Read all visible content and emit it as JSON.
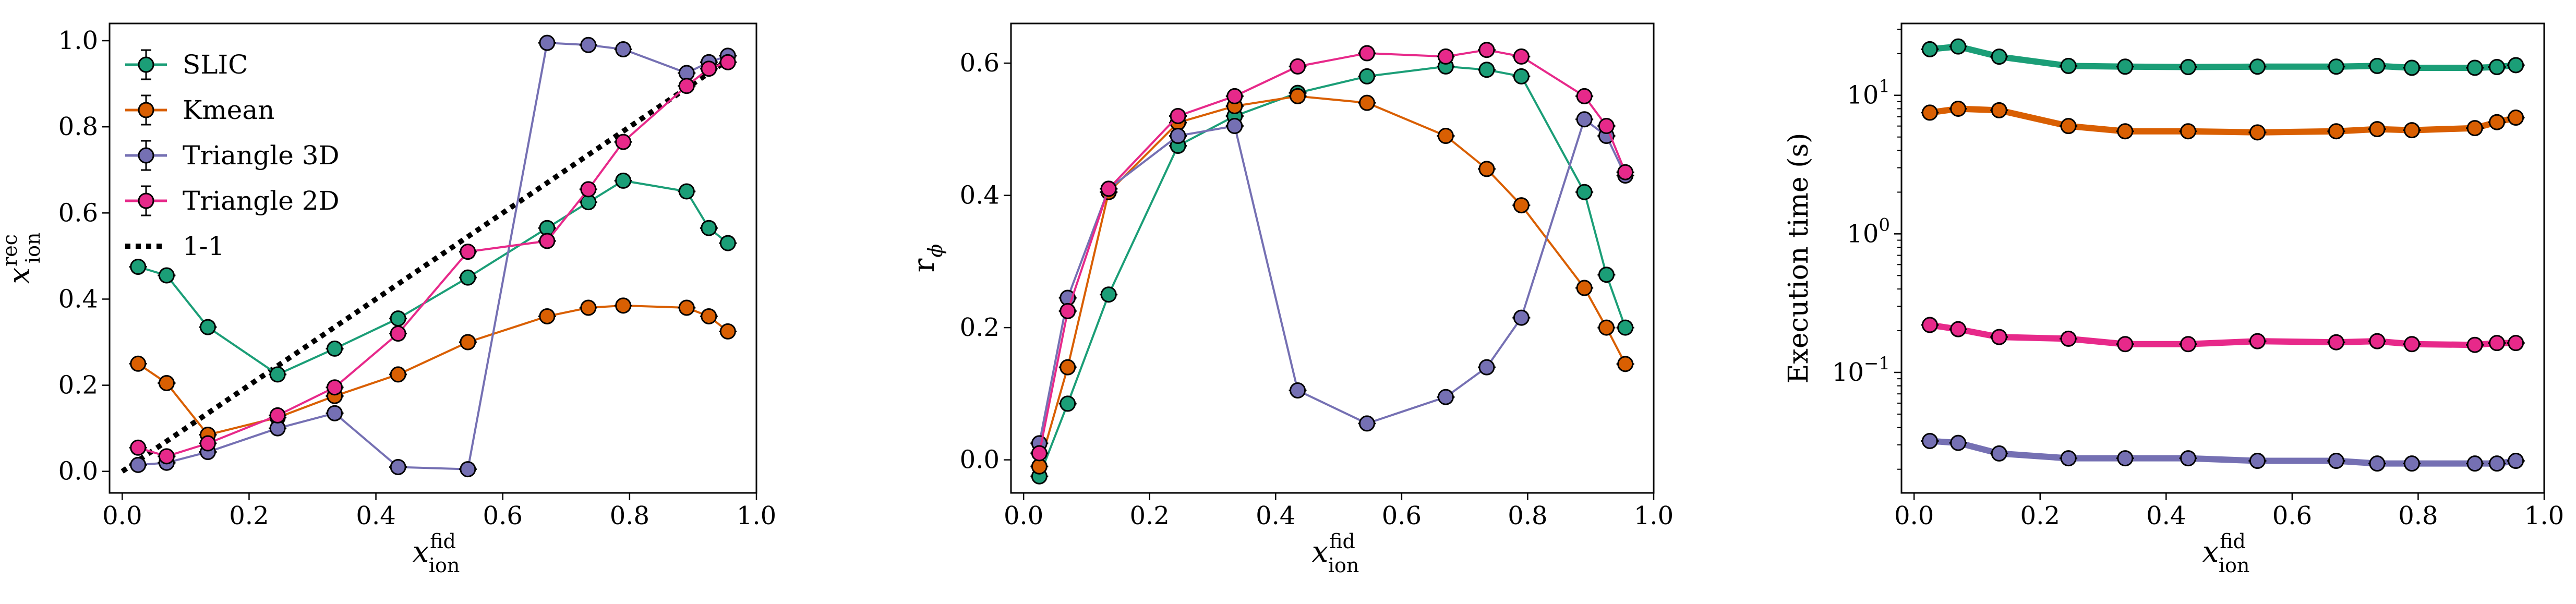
{
  "chart_data": [
    {
      "type": "line",
      "title": "",
      "xlabel": "x",
      "xlabel_sub": "ion",
      "xlabel_sup": "fid",
      "ylabel": "x",
      "ylabel_sub": "ion",
      "ylabel_sup": "rec",
      "xlim": [
        -0.02,
        1.0
      ],
      "ylim": [
        -0.05,
        1.04
      ],
      "yscale": "linear",
      "xticks": [
        0.0,
        0.2,
        0.4,
        0.6,
        0.8,
        1.0
      ],
      "xtick_labels": [
        "0.0",
        "0.2",
        "0.4",
        "0.6",
        "0.8",
        "1.0"
      ],
      "yticks": [
        0.0,
        0.2,
        0.4,
        0.6,
        0.8,
        1.0
      ],
      "ytick_labels": [
        "0.0",
        "0.2",
        "0.4",
        "0.6",
        "0.8",
        "1.0"
      ],
      "legend_position": "top-left",
      "legend": [
        "SLIC",
        "Kmean",
        "Triangle 3D",
        "Triangle 2D",
        "1-1"
      ],
      "series": [
        {
          "name": "SLIC",
          "color": "#1b9e77",
          "x": [
            0.025,
            0.07,
            0.135,
            0.245,
            0.335,
            0.435,
            0.545,
            0.67,
            0.735,
            0.79,
            0.89,
            0.925,
            0.955
          ],
          "y": [
            0.475,
            0.455,
            0.335,
            0.225,
            0.285,
            0.355,
            0.45,
            0.565,
            0.625,
            0.675,
            0.65,
            0.565,
            0.53
          ]
        },
        {
          "name": "Kmean",
          "color": "#d95f02",
          "x": [
            0.025,
            0.07,
            0.135,
            0.245,
            0.335,
            0.435,
            0.545,
            0.67,
            0.735,
            0.79,
            0.89,
            0.925,
            0.955
          ],
          "y": [
            0.25,
            0.205,
            0.085,
            0.125,
            0.175,
            0.225,
            0.3,
            0.36,
            0.38,
            0.385,
            0.38,
            0.36,
            0.325
          ]
        },
        {
          "name": "Triangle 3D",
          "color": "#7570b3",
          "x": [
            0.025,
            0.07,
            0.135,
            0.245,
            0.335,
            0.435,
            0.545,
            0.67,
            0.735,
            0.79,
            0.89,
            0.925,
            0.955
          ],
          "y": [
            0.015,
            0.02,
            0.045,
            0.1,
            0.135,
            0.01,
            0.005,
            0.995,
            0.99,
            0.98,
            0.925,
            0.95,
            0.965
          ]
        },
        {
          "name": "Triangle 2D",
          "color": "#e7298a",
          "x": [
            0.025,
            0.07,
            0.135,
            0.245,
            0.335,
            0.435,
            0.545,
            0.67,
            0.735,
            0.79,
            0.89,
            0.925,
            0.955
          ],
          "y": [
            0.055,
            0.035,
            0.065,
            0.13,
            0.195,
            0.32,
            0.51,
            0.535,
            0.655,
            0.765,
            0.895,
            0.935,
            0.95
          ]
        }
      ],
      "reference_line": {
        "name": "1-1",
        "x": [
          0.0,
          0.955
        ],
        "y": [
          0.0,
          0.955
        ],
        "style": "dotted",
        "color": "#000000"
      }
    },
    {
      "type": "line",
      "title": "",
      "xlabel": "x",
      "xlabel_sub": "ion",
      "xlabel_sup": "fid",
      "ylabel": "r",
      "ylabel_sub": "ϕ",
      "ylabel_sup": "",
      "xlim": [
        -0.02,
        1.0
      ],
      "ylim": [
        -0.05,
        0.66
      ],
      "yscale": "linear",
      "xticks": [
        0.0,
        0.2,
        0.4,
        0.6,
        0.8,
        1.0
      ],
      "xtick_labels": [
        "0.0",
        "0.2",
        "0.4",
        "0.6",
        "0.8",
        "1.0"
      ],
      "yticks": [
        0.0,
        0.2,
        0.4,
        0.6
      ],
      "ytick_labels": [
        "0.0",
        "0.2",
        "0.4",
        "0.6"
      ],
      "series": [
        {
          "name": "SLIC",
          "color": "#1b9e77",
          "x": [
            0.025,
            0.07,
            0.135,
            0.245,
            0.335,
            0.435,
            0.545,
            0.67,
            0.735,
            0.79,
            0.89,
            0.925,
            0.955
          ],
          "y": [
            -0.025,
            0.085,
            0.25,
            0.475,
            0.52,
            0.555,
            0.58,
            0.595,
            0.59,
            0.58,
            0.405,
            0.28,
            0.2
          ]
        },
        {
          "name": "Kmean",
          "color": "#d95f02",
          "x": [
            0.025,
            0.07,
            0.135,
            0.245,
            0.335,
            0.435,
            0.545,
            0.67,
            0.735,
            0.79,
            0.89,
            0.925,
            0.955
          ],
          "y": [
            -0.01,
            0.14,
            0.405,
            0.51,
            0.535,
            0.55,
            0.54,
            0.49,
            0.44,
            0.385,
            0.26,
            0.2,
            0.145
          ]
        },
        {
          "name": "Triangle 3D",
          "color": "#7570b3",
          "x": [
            0.025,
            0.07,
            0.135,
            0.245,
            0.335,
            0.435,
            0.545,
            0.67,
            0.735,
            0.79,
            0.89,
            0.925,
            0.955
          ],
          "y": [
            0.025,
            0.245,
            0.41,
            0.49,
            0.505,
            0.105,
            0.055,
            0.095,
            0.14,
            0.215,
            0.515,
            0.49,
            0.43
          ]
        },
        {
          "name": "Triangle 2D",
          "color": "#e7298a",
          "x": [
            0.025,
            0.07,
            0.135,
            0.245,
            0.335,
            0.435,
            0.545,
            0.67,
            0.735,
            0.79,
            0.89,
            0.925,
            0.955
          ],
          "y": [
            0.01,
            0.225,
            0.41,
            0.52,
            0.55,
            0.595,
            0.615,
            0.61,
            0.62,
            0.61,
            0.55,
            0.505,
            0.435
          ]
        }
      ]
    },
    {
      "type": "line",
      "title": "",
      "xlabel": "x",
      "xlabel_sub": "ion",
      "xlabel_sup": "fid",
      "ylabel": "Execution time (s)",
      "xlim": [
        -0.02,
        1.0
      ],
      "ylim": [
        0.0135,
        33
      ],
      "yscale": "log",
      "xticks": [
        0.0,
        0.2,
        0.4,
        0.6,
        0.8,
        1.0
      ],
      "xtick_labels": [
        "0.0",
        "0.2",
        "0.4",
        "0.6",
        "0.8",
        "1.0"
      ],
      "yticks": [
        0.1,
        1,
        10
      ],
      "ytick_base": "10",
      "ytick_exponents": [
        "−1",
        "0",
        "1"
      ],
      "series": [
        {
          "name": "SLIC",
          "color": "#1b9e77",
          "x": [
            0.025,
            0.07,
            0.135,
            0.245,
            0.335,
            0.435,
            0.545,
            0.67,
            0.735,
            0.79,
            0.89,
            0.925,
            0.955
          ],
          "y": [
            21.5,
            22.5,
            19.0,
            16.3,
            16.1,
            16.0,
            16.1,
            16.1,
            16.3,
            15.8,
            15.8,
            16.0,
            16.5
          ]
        },
        {
          "name": "Kmean",
          "color": "#d95f02",
          "x": [
            0.025,
            0.07,
            0.135,
            0.245,
            0.335,
            0.435,
            0.545,
            0.67,
            0.735,
            0.79,
            0.89,
            0.925,
            0.955
          ],
          "y": [
            7.5,
            8.0,
            7.8,
            6.0,
            5.5,
            5.5,
            5.4,
            5.5,
            5.7,
            5.6,
            5.8,
            6.4,
            6.9
          ]
        },
        {
          "name": "Triangle 3D",
          "color": "#7570b3",
          "x": [
            0.025,
            0.07,
            0.135,
            0.245,
            0.335,
            0.435,
            0.545,
            0.67,
            0.735,
            0.79,
            0.89,
            0.925,
            0.955
          ],
          "y": [
            0.032,
            0.031,
            0.026,
            0.024,
            0.024,
            0.024,
            0.023,
            0.023,
            0.022,
            0.022,
            0.022,
            0.022,
            0.023
          ]
        },
        {
          "name": "Triangle 2D",
          "color": "#e7298a",
          "x": [
            0.025,
            0.07,
            0.135,
            0.245,
            0.335,
            0.435,
            0.545,
            0.67,
            0.735,
            0.79,
            0.89,
            0.925,
            0.955
          ],
          "y": [
            0.22,
            0.205,
            0.18,
            0.175,
            0.16,
            0.16,
            0.168,
            0.165,
            0.168,
            0.16,
            0.158,
            0.163,
            0.163
          ]
        }
      ]
    }
  ]
}
